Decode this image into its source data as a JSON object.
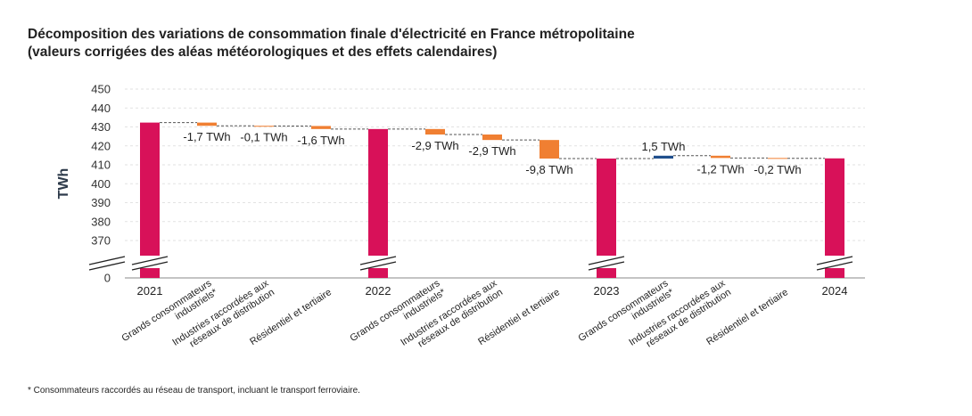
{
  "title_line1": "Décomposition des variations de consommation finale d'électricité en France métropolitaine",
  "title_line2": "(valeurs corrigées des aléas météorologiques et des effets calendaires)",
  "footnote": "* Consommateurs raccordés au réseau de transport, incluant le transport ferroviaire.",
  "colors": {
    "total": "#d81159",
    "decrease": "#f07f32",
    "increase": "#1f4e8c",
    "connector": "#555555"
  },
  "chart_data": {
    "type": "waterfall",
    "ylabel": "TWh",
    "ylim": [
      0,
      450
    ],
    "axis_break": [
      0,
      360
    ],
    "y_ticks": [
      0,
      370,
      380,
      390,
      400,
      410,
      420,
      430,
      440,
      450
    ],
    "grid": true,
    "categories": [
      "2021",
      "Grands consommateurs industriels*",
      "Industries raccordées aux réseaux de distribution",
      "Résidentiel et tertiaire",
      "2022",
      "Grands consommateurs industriels*",
      "Industries raccordées aux réseaux de distribution",
      "Résidentiel et tertiaire",
      "2023",
      "Grands consommateurs industriels*",
      "Industries raccordées aux réseaux de distribution",
      "Résidentiel et tertiaire",
      "2024"
    ],
    "category_lines": [
      [
        "2021"
      ],
      [
        "Grands consommateurs",
        "industriels*"
      ],
      [
        "Industries raccordées aux",
        "réseaux de distribution"
      ],
      [
        "Résidentiel et tertiaire"
      ],
      [
        "2022"
      ],
      [
        "Grands consommateurs",
        "industriels*"
      ],
      [
        "Industries raccordées aux",
        "réseaux de distribution"
      ],
      [
        "Résidentiel et tertiaire"
      ],
      [
        "2023"
      ],
      [
        "Grands consommateurs",
        "industriels*"
      ],
      [
        "Industries raccordées aux",
        "réseaux de distribution"
      ],
      [
        "Résidentiel et tertiaire"
      ],
      [
        "2024"
      ]
    ],
    "kinds": [
      "total",
      "delta",
      "delta",
      "delta",
      "total",
      "delta",
      "delta",
      "delta",
      "total",
      "delta",
      "delta",
      "delta",
      "total"
    ],
    "values": [
      432.3,
      -1.7,
      -0.1,
      -1.6,
      428.9,
      -2.9,
      -2.9,
      -9.8,
      413.3,
      1.5,
      -1.2,
      -0.2,
      413.4
    ],
    "data_labels": [
      "",
      "-1,7 TWh",
      "-0,1 TWh",
      "-1,6 TWh",
      "",
      "-2,9 TWh",
      "-2,9 TWh",
      "-9,8  TWh",
      "",
      "1,5 TWh",
      "-1,2 TWh",
      "-0,2 TWh",
      ""
    ]
  }
}
